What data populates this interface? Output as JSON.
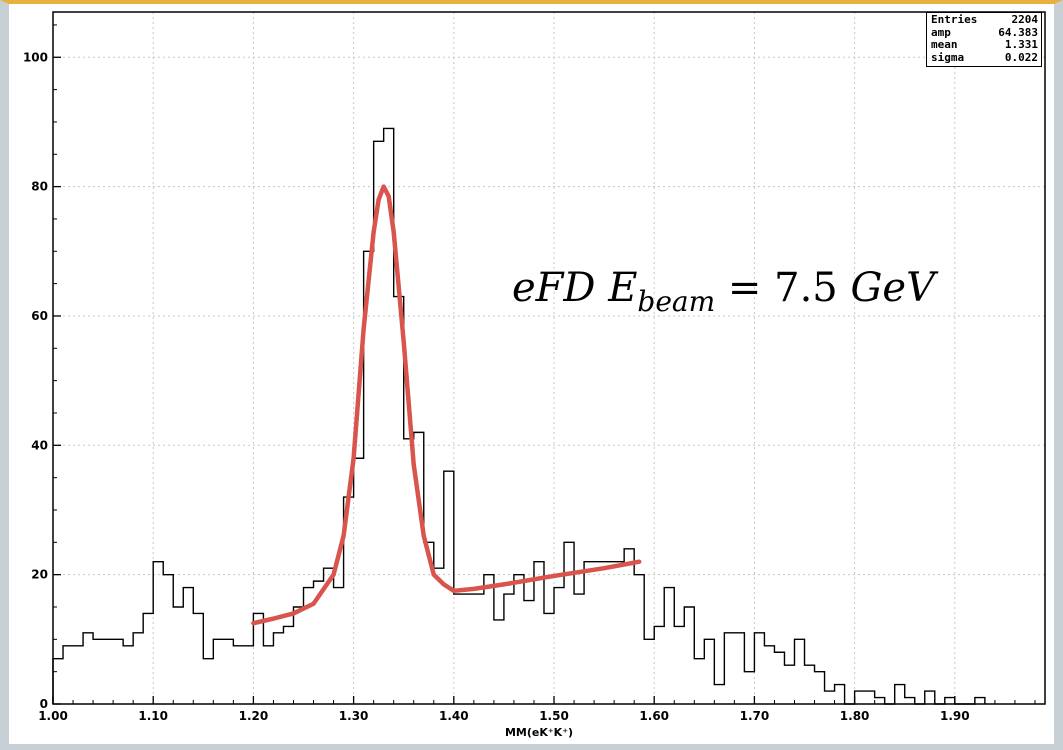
{
  "chart_data": {
    "type": "histogram",
    "xlabel": "MM(eK⁺K⁺)",
    "ylabel": "",
    "xlim": [
      1.0,
      1.99
    ],
    "ylim": [
      0,
      107
    ],
    "x_ticks": [
      "1.00",
      "1.10",
      "1.20",
      "1.30",
      "1.40",
      "1.50",
      "1.60",
      "1.70",
      "1.80",
      "1.90"
    ],
    "y_ticks": [
      "0",
      "20",
      "40",
      "60",
      "80",
      "100"
    ],
    "grid": true,
    "histogram": {
      "bin_start": 1.0,
      "bin_width": 0.01,
      "counts": [
        7,
        9,
        9,
        11,
        10,
        10,
        10,
        9,
        11,
        14,
        22,
        20,
        15,
        18,
        14,
        7,
        10,
        10,
        9,
        9,
        14,
        9,
        11,
        12,
        15,
        18,
        19,
        21,
        18,
        32,
        38,
        70,
        87,
        89,
        63,
        41,
        42,
        25,
        21,
        36,
        17,
        17,
        17,
        20,
        13,
        17,
        20,
        16,
        22,
        14,
        18,
        25,
        17,
        22,
        22,
        22,
        22,
        24,
        20,
        10,
        12,
        18,
        12,
        15,
        7,
        10,
        3,
        11,
        11,
        5,
        11,
        9,
        8,
        6,
        10,
        6,
        5,
        2,
        3,
        0,
        2,
        2,
        1,
        0,
        3,
        1,
        0,
        2,
        0,
        1,
        0,
        0,
        1
      ]
    },
    "fit": {
      "color": "#d9544d",
      "x": [
        1.2,
        1.22,
        1.24,
        1.26,
        1.28,
        1.29,
        1.3,
        1.31,
        1.32,
        1.325,
        1.33,
        1.335,
        1.34,
        1.35,
        1.36,
        1.37,
        1.38,
        1.39,
        1.4,
        1.42,
        1.45,
        1.5,
        1.55,
        1.585
      ],
      "y": [
        12.5,
        13.2,
        14.0,
        15.5,
        20.0,
        26.0,
        38.0,
        58.0,
        73.0,
        78.0,
        80.0,
        78.5,
        73.0,
        56.0,
        37.0,
        26.0,
        20.0,
        18.5,
        17.5,
        17.8,
        18.5,
        19.8,
        21.0,
        22.0
      ]
    },
    "stats": [
      {
        "label": "Entries",
        "value": "2204"
      },
      {
        "label": "amp",
        "value": "64.383"
      },
      {
        "label": "mean",
        "value": "1.331"
      },
      {
        "label": "sigma",
        "value": "0.022"
      }
    ],
    "annotation": {
      "main": "eFD E",
      "sub": "beam",
      "rest": " = 7.5 ",
      "unit": "GeV"
    }
  }
}
